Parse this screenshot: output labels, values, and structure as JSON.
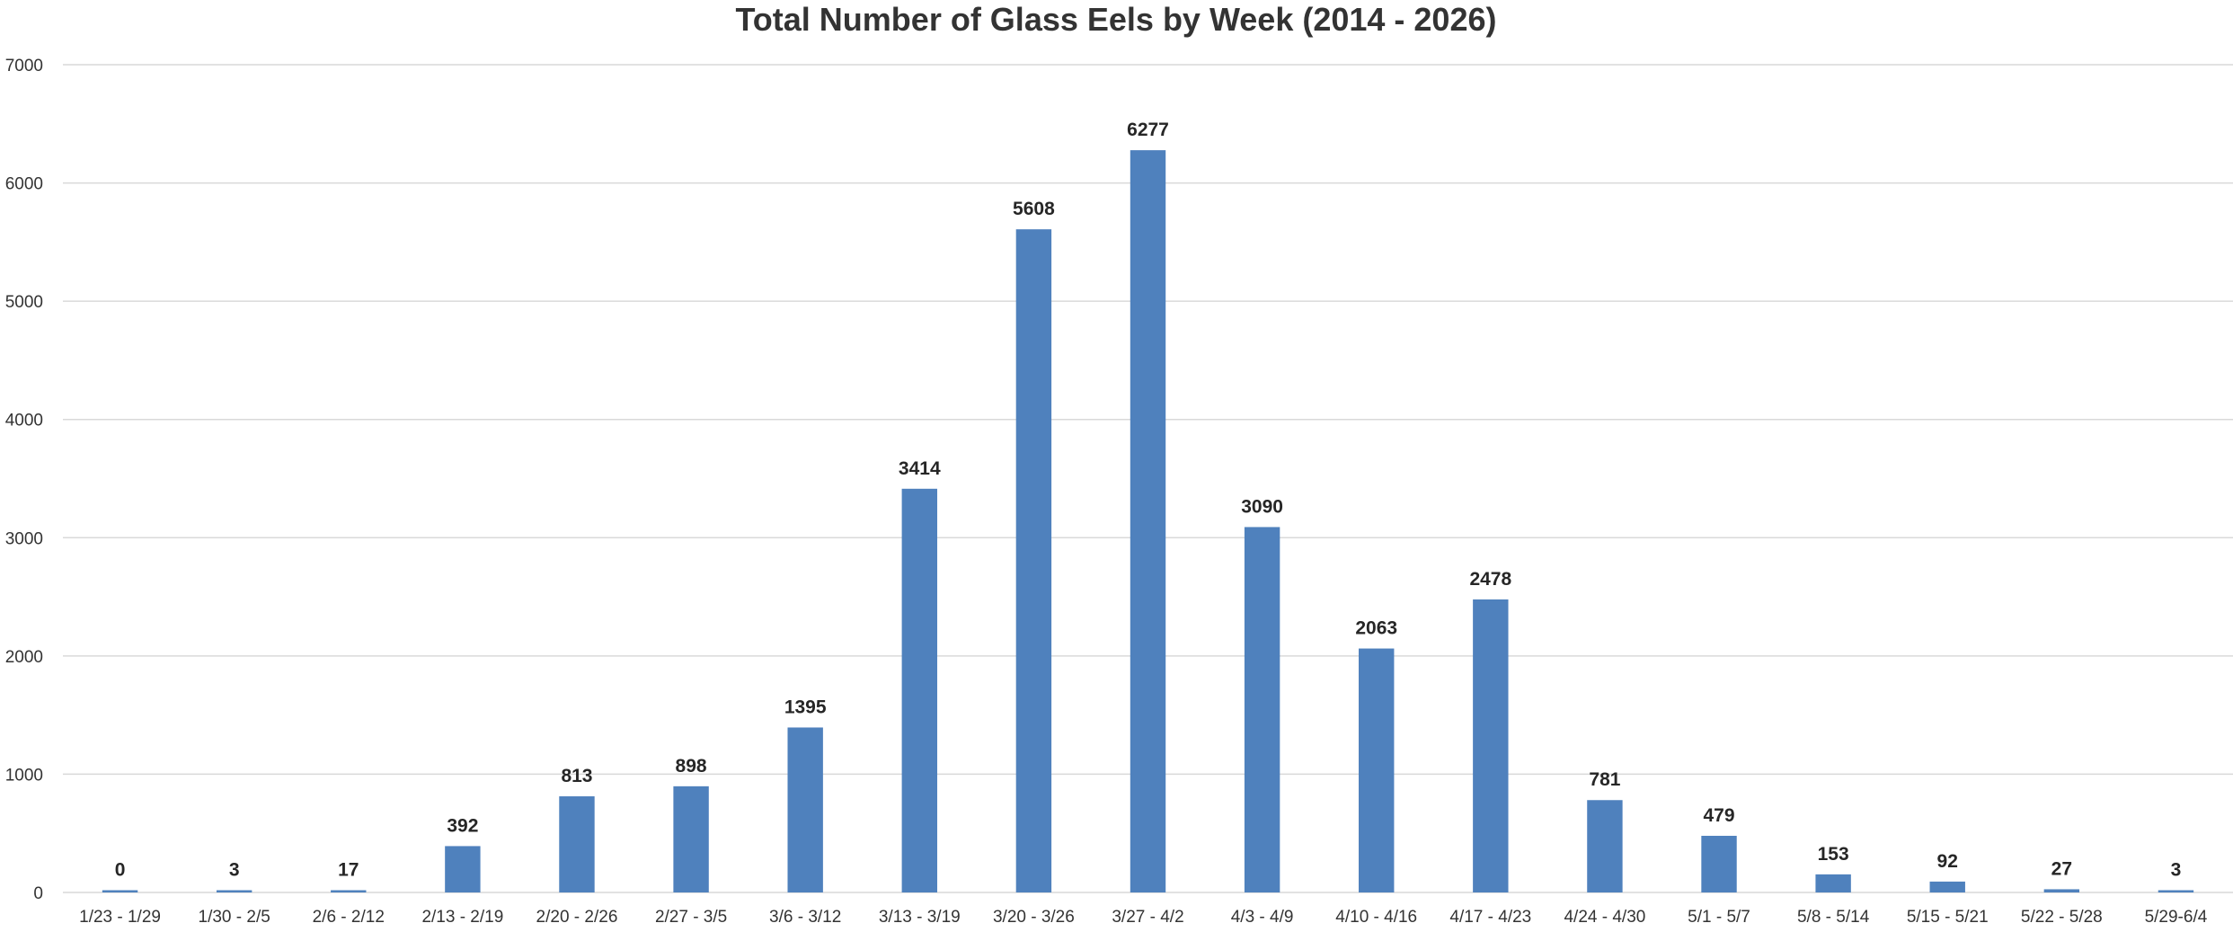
{
  "chart_data": {
    "type": "bar",
    "title": "Total Number of Glass Eels by Week (2014 - 2026)",
    "xlabel": "",
    "ylabel": "",
    "ylim": [
      0,
      7000
    ],
    "yticks": [
      0,
      1000,
      2000,
      3000,
      4000,
      5000,
      6000,
      7000
    ],
    "grid": true,
    "legend": "none",
    "bar_color": "#4f81bd",
    "categories": [
      "1/23 - 1/29",
      "1/30 - 2/5",
      "2/6 - 2/12",
      "2/13 - 2/19",
      "2/20 - 2/26",
      "2/27 - 3/5",
      "3/6 - 3/12",
      "3/13 - 3/19",
      "3/20 - 3/26",
      "3/27 - 4/2",
      "4/3 - 4/9",
      "4/10 - 4/16",
      "4/17 - 4/23",
      "4/24 - 4/30",
      "5/1 - 5/7",
      "5/8 - 5/14",
      "5/15 - 5/21",
      "5/22 - 5/28",
      "5/29-6/4"
    ],
    "values": [
      0,
      3,
      17,
      392,
      813,
      898,
      1395,
      3414,
      5608,
      6277,
      3090,
      2063,
      2478,
      781,
      479,
      153,
      92,
      27,
      3
    ],
    "data_labels": [
      "0",
      "3",
      "17",
      "392",
      "813",
      "898",
      "1395",
      "3414",
      "5608",
      "6277",
      "3090",
      "2063",
      "2478",
      "781",
      "479",
      "153",
      "92",
      "27",
      "3"
    ]
  }
}
